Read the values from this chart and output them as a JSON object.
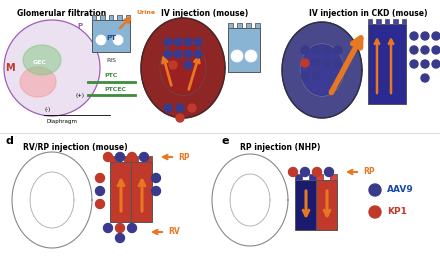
{
  "title_a": "Glomerular filtration",
  "title_b": "IV injection (mouse)",
  "title_c": "IV injection in CKD (mouse)",
  "title_d": "RV/RP injection (mouse)",
  "title_e": "RP injection (NHP)",
  "label_d": "d",
  "label_e": "e",
  "legend_aav9": "AAV9",
  "legend_kp1": "KP1",
  "color_aav9": "#3a3a8c",
  "color_kp1": "#c0392b",
  "color_orange": "#e87722",
  "color_purple": "#9b59b6",
  "color_pink": "#f4a0a0",
  "color_green": "#3d8b3d",
  "color_blue_pt": "#8ab4d4",
  "color_navy": "#1a1a6e",
  "color_dark_red": "#7a0000",
  "color_med_red": "#a02020",
  "bg": "#ffffff"
}
